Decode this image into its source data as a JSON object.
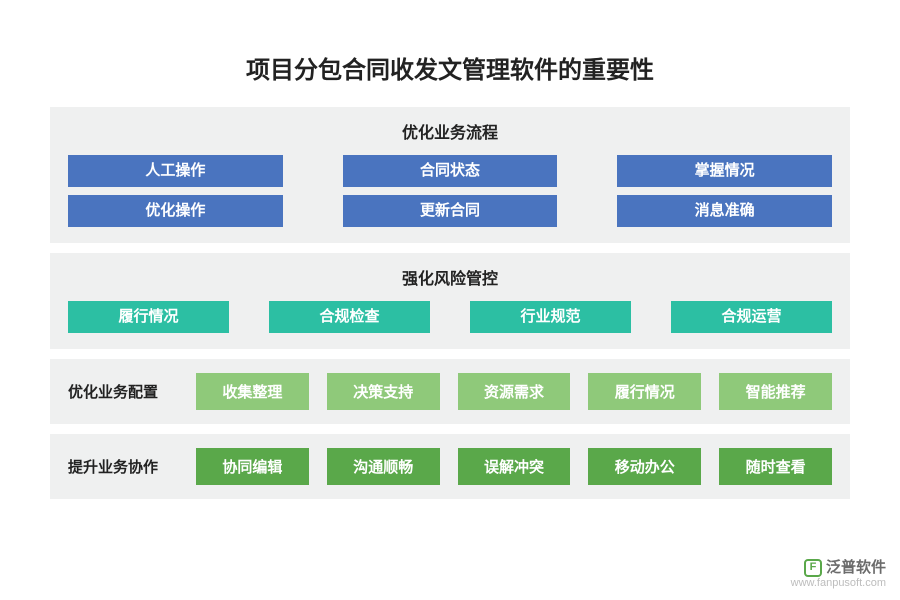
{
  "title": "项目分包合同收发文管理软件的重要性",
  "colors": {
    "section_bg": "#eff0f0",
    "blue": "#4a74bf",
    "teal": "#2cbfa3",
    "light_green": "#8fc97a",
    "green": "#5aa84a",
    "text": "#222222",
    "bg": "#ffffff"
  },
  "section1": {
    "title": "优化业务流程",
    "row1": [
      "人工操作",
      "合同状态",
      "掌握情况"
    ],
    "row2": [
      "优化操作",
      "更新合同",
      "消息准确"
    ],
    "pill_color": "#4a74bf"
  },
  "section2": {
    "title": "强化风险管控",
    "items": [
      "履行情况",
      "合规检查",
      "行业规范",
      "合规运营"
    ],
    "pill_color": "#2cbfa3"
  },
  "section3": {
    "label": "优化业务配置",
    "items": [
      "收集整理",
      "决策支持",
      "资源需求",
      "履行情况",
      "智能推荐"
    ],
    "tag_color": "#8fc97a"
  },
  "section4": {
    "label": "提升业务协作",
    "items": [
      "协同编辑",
      "沟通顺畅",
      "误解冲突",
      "移动办公",
      "随时查看"
    ],
    "tag_color": "#5aa84a"
  },
  "watermark": {
    "brand": "泛普软件",
    "url": "www.fanpusoft.com"
  }
}
